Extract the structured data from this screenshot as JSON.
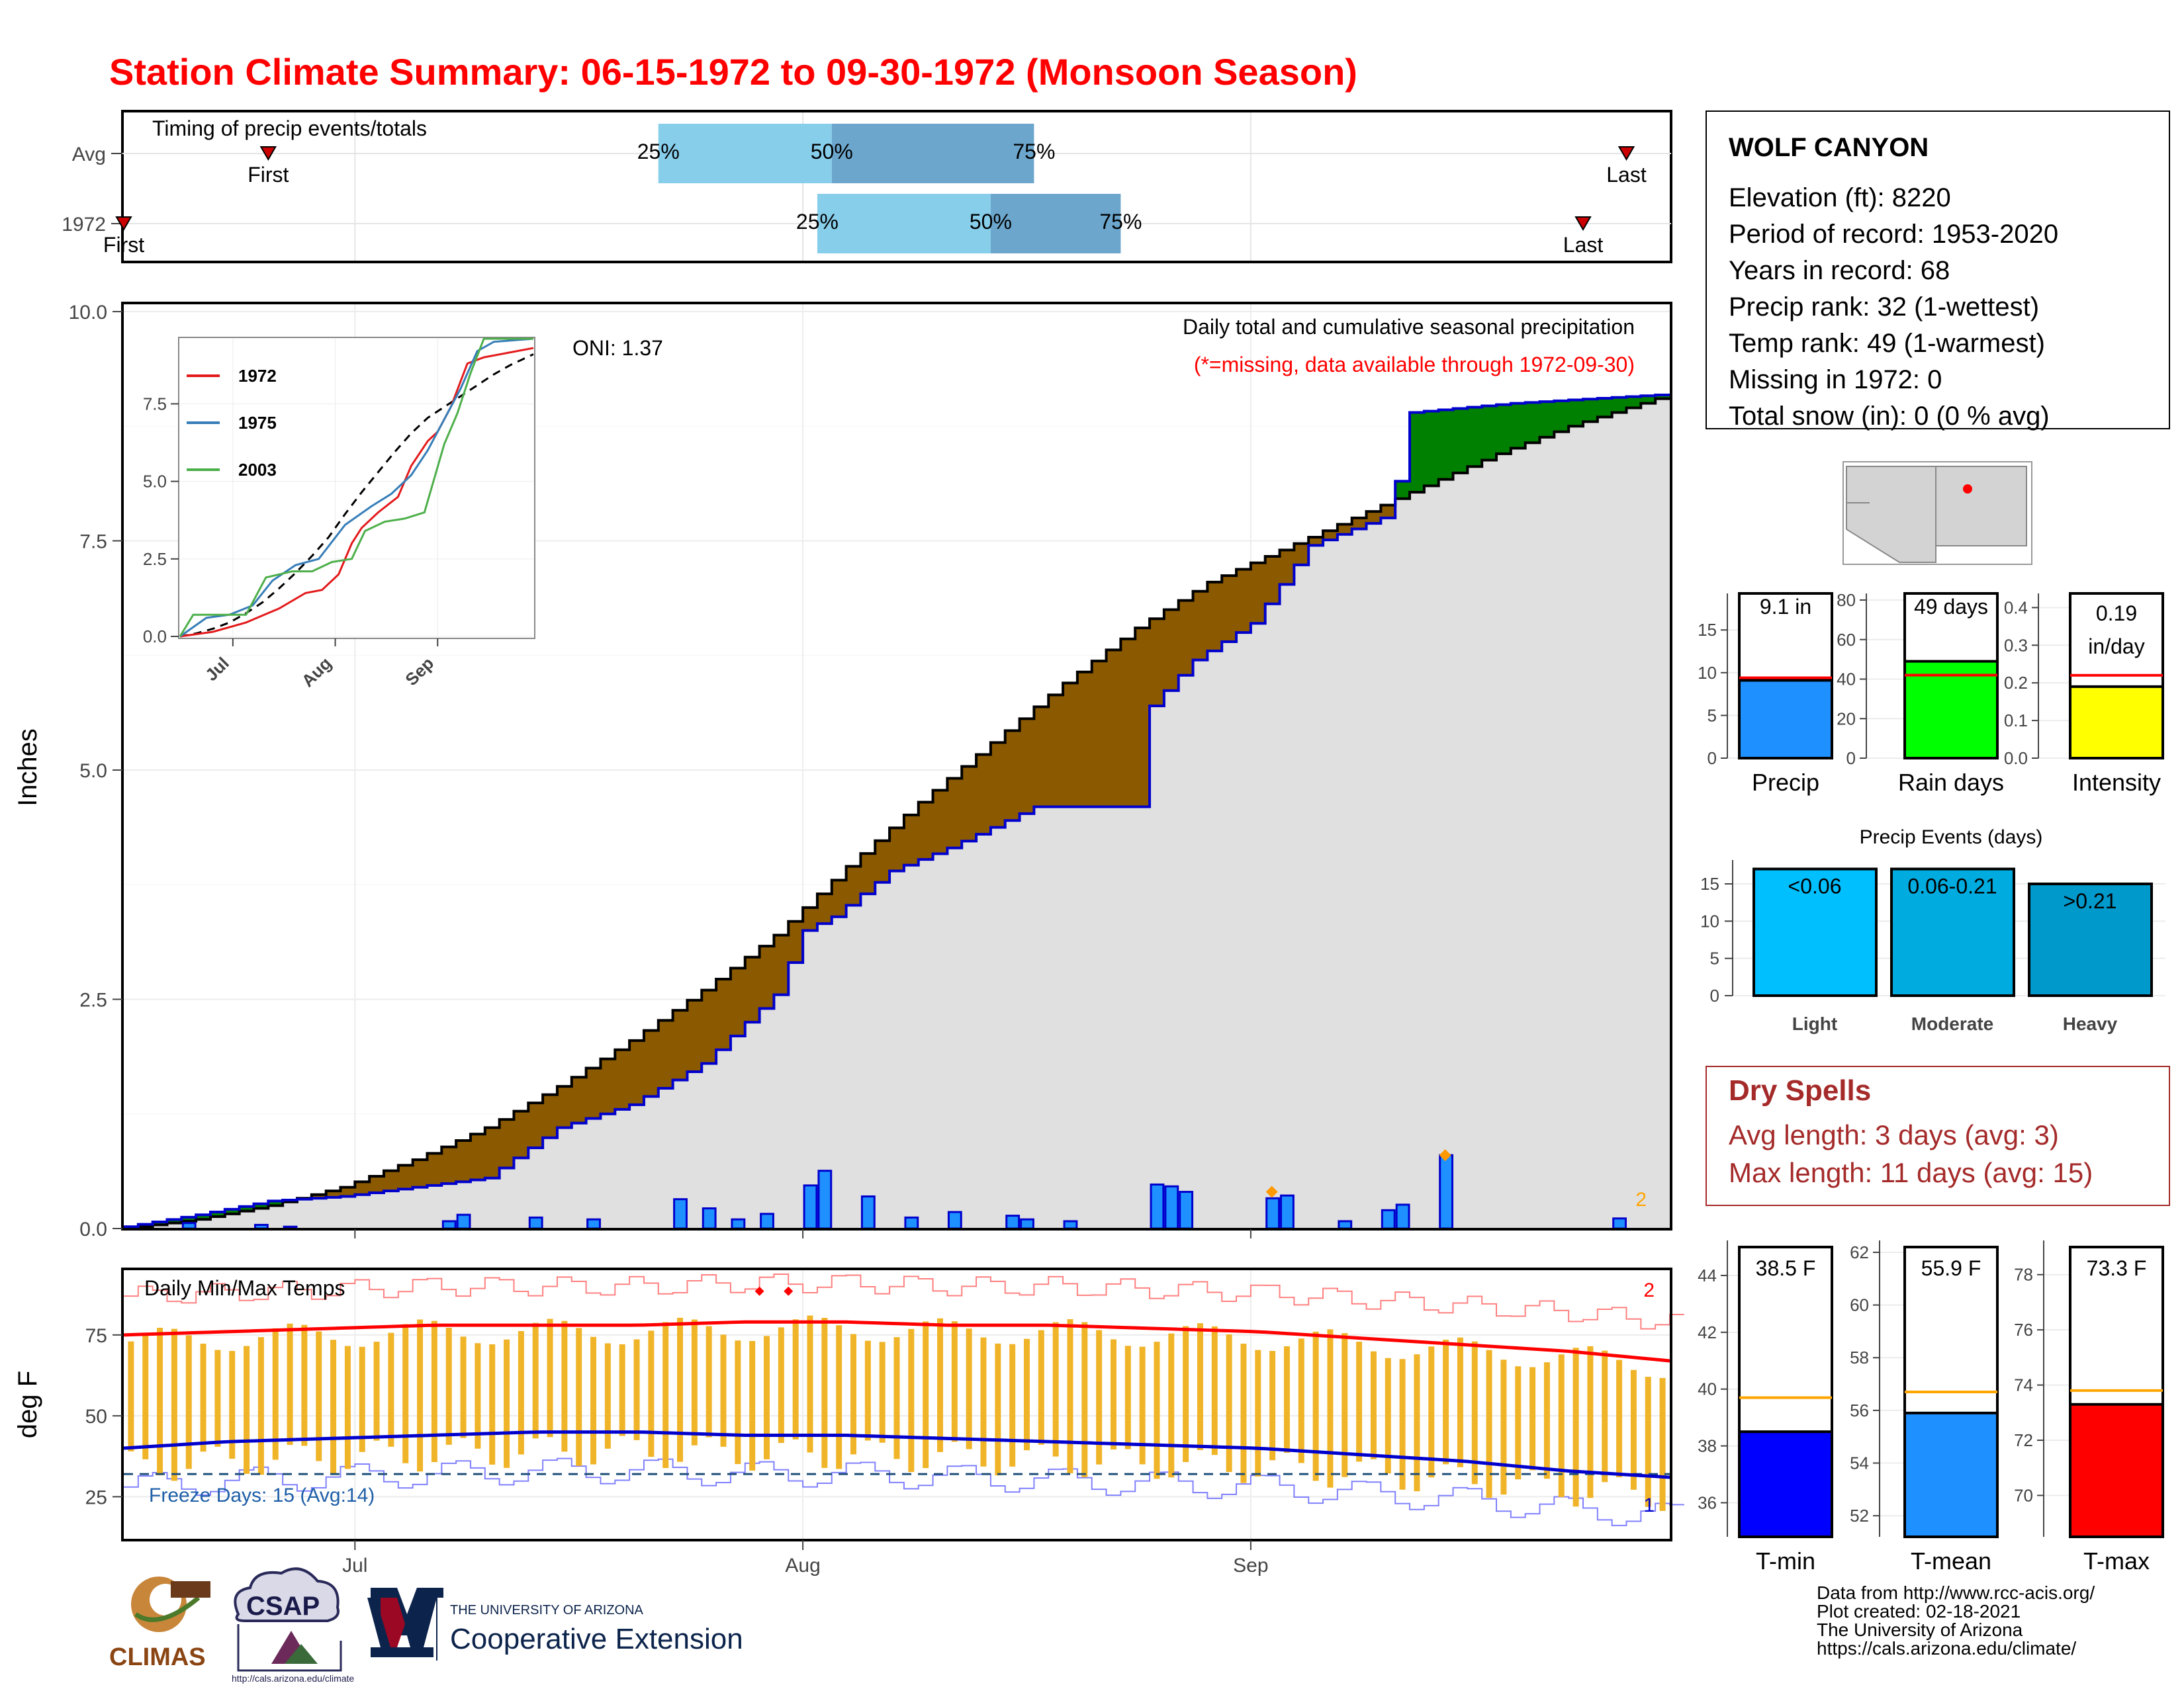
{
  "title": "Station Climate Summary: 06-15-1972 to 09-30-1972 (Monsoon Season)",
  "timing_panel": {
    "label": "Timing of precip events/totals",
    "rows": [
      {
        "label": "Avg",
        "first": "06-25",
        "q25": "07-22",
        "q50": "08-03",
        "q75": "08-17",
        "last": "09-27",
        "first_label": "First",
        "q25_label": "25%",
        "q50_label": "50%",
        "q75_label": "75%",
        "last_label": "Last"
      },
      {
        "label": "1972",
        "first": "06-15",
        "q25": "08-02",
        "q50": "08-14",
        "q75": "08-23",
        "last": "09-24",
        "first_label": "First",
        "q25_label": "25%",
        "q50_label": "50%",
        "q75_label": "75%",
        "last_label": "Last"
      }
    ]
  },
  "station": {
    "name": "WOLF CANYON",
    "lines": [
      "Elevation (ft): 8220",
      "Period of record: 1953-2020",
      "Years in record: 68",
      "Precip rank: 32 (1-wettest)",
      "Temp rank: 49 (1-warmest)",
      "Missing in 1972: 0",
      "Total snow (in): 0 (0 % avg)"
    ]
  },
  "dry_spells": {
    "title": "Dry Spells",
    "avg": "Avg length: 3 days (avg: 3)",
    "max": "Max length: 11 days (avg: 15)"
  },
  "footer": {
    "lines": [
      "Data from http://www.rcc-acis.org/",
      "Plot created: 02-18-2021",
      "The University of Arizona",
      "https://cals.arizona.edu/climate/"
    ],
    "logos": {
      "climas": "CLIMAS",
      "csap": "CSAP",
      "ua_small": "THE UNIVERSITY OF ARIZONA",
      "ua_big": "Cooperative Extension",
      "csap_url": "http://cals.arizona.edu/climate"
    }
  },
  "colors": {
    "title": "#ff0000",
    "brown": "#8b5a00",
    "green": "#008000",
    "precip_bar": "#1e90ff",
    "bar_outline": "#0000cd",
    "tmax": "#ff0000",
    "tmin": "#0000cd",
    "temp_bar": "#f0b429",
    "q_light": "#87ceeb",
    "q_dark": "#6ca6cd",
    "dry": "#a52a2a"
  },
  "chart_data": [
    {
      "id": "precip",
      "type": "area",
      "annotation": "Daily total and cumulative seasonal precipitation",
      "missing_note": "(*=missing, data available through 1972-09-30)",
      "oni": "ONI: 1.37",
      "corner_mark": "2",
      "ylabel": "Inches",
      "ylim": [
        0,
        10
      ],
      "yticks": [
        "0.0",
        "2.5",
        "5.0",
        "7.5",
        "10.0"
      ],
      "xticks": [
        "Jul",
        "Aug",
        "Sep"
      ],
      "avg_cumulative": [
        [
          "06-15",
          0.0
        ],
        [
          "06-20",
          0.1
        ],
        [
          "06-25",
          0.25
        ],
        [
          "06-30",
          0.45
        ],
        [
          "07-05",
          0.75
        ],
        [
          "07-10",
          1.1
        ],
        [
          "07-15",
          1.55
        ],
        [
          "07-20",
          2.05
        ],
        [
          "07-25",
          2.6
        ],
        [
          "07-30",
          3.2
        ],
        [
          "08-04",
          3.95
        ],
        [
          "08-09",
          4.65
        ],
        [
          "08-14",
          5.3
        ],
        [
          "08-19",
          5.95
        ],
        [
          "08-24",
          6.55
        ],
        [
          "08-29",
          7.05
        ],
        [
          "09-03",
          7.4
        ],
        [
          "09-08",
          7.75
        ],
        [
          "09-13",
          8.1
        ],
        [
          "09-18",
          8.45
        ],
        [
          "09-23",
          8.75
        ],
        [
          "09-30",
          9.1
        ]
      ],
      "year_cumulative": [
        [
          "06-15",
          0.02
        ],
        [
          "06-20",
          0.15
        ],
        [
          "06-25",
          0.3
        ],
        [
          "06-30",
          0.35
        ],
        [
          "07-05",
          0.45
        ],
        [
          "07-10",
          0.55
        ],
        [
          "07-15",
          1.1
        ],
        [
          "07-20",
          1.35
        ],
        [
          "07-25",
          1.8
        ],
        [
          "07-30",
          2.55
        ],
        [
          "08-01",
          3.25
        ],
        [
          "08-03",
          3.4
        ],
        [
          "08-07",
          3.9
        ],
        [
          "08-11",
          4.15
        ],
        [
          "08-17",
          4.6
        ],
        [
          "08-24",
          4.6
        ],
        [
          "08-25",
          5.7
        ],
        [
          "08-28",
          6.2
        ],
        [
          "09-01",
          6.6
        ],
        [
          "09-05",
          7.45
        ],
        [
          "09-10",
          7.75
        ],
        [
          "09-11",
          8.15
        ],
        [
          "09-12",
          8.9
        ],
        [
          "09-19",
          9.0
        ],
        [
          "09-30",
          9.1
        ]
      ],
      "daily_precip": [
        [
          "06-19",
          0.06
        ],
        [
          "06-24",
          0.04
        ],
        [
          "06-26",
          0.02
        ],
        [
          "07-07",
          0.08
        ],
        [
          "07-08",
          0.15
        ],
        [
          "07-13",
          0.12
        ],
        [
          "07-17",
          0.1
        ],
        [
          "07-23",
          0.32
        ],
        [
          "07-25",
          0.22
        ],
        [
          "07-27",
          0.1
        ],
        [
          "07-29",
          0.16
        ],
        [
          "08-01",
          0.47
        ],
        [
          "08-02",
          0.63
        ],
        [
          "08-05",
          0.35
        ],
        [
          "08-08",
          0.12
        ],
        [
          "08-11",
          0.18
        ],
        [
          "08-15",
          0.14
        ],
        [
          "08-16",
          0.1
        ],
        [
          "08-19",
          0.08
        ],
        [
          "08-25",
          0.48
        ],
        [
          "08-26",
          0.46
        ],
        [
          "08-27",
          0.4
        ],
        [
          "09-02",
          0.33
        ],
        [
          "09-03",
          0.36
        ],
        [
          "09-07",
          0.08
        ],
        [
          "09-10",
          0.2
        ],
        [
          "09-11",
          0.26
        ],
        [
          "09-14",
          0.8
        ],
        [
          "09-26",
          0.11
        ]
      ],
      "inset": {
        "type": "line",
        "yticks": [
          "0.0",
          "2.5",
          "5.0",
          "7.5"
        ],
        "xticks": [
          "Jul",
          "Aug",
          "Sep"
        ],
        "series": [
          {
            "name": "1972",
            "color": "#e31a1c"
          },
          {
            "name": "1975",
            "color": "#377eb8"
          },
          {
            "name": "2003",
            "color": "#4daf4a"
          }
        ]
      }
    },
    {
      "id": "temps",
      "type": "bar",
      "annotation": "Daily Min/Max Temps",
      "ylabel": "deg F",
      "yticks": [
        "25",
        "50",
        "75"
      ],
      "xticks": [
        "Jul",
        "Aug",
        "Sep"
      ],
      "freeze_note": "Freeze Days: 15 (Avg:14)",
      "corner_top": "2",
      "corner_bottom": "1",
      "freeze_line": 32,
      "avg_tmax": [
        75,
        76,
        77,
        78,
        78,
        78,
        79,
        79,
        78,
        78,
        77,
        76,
        74,
        72,
        70,
        67
      ],
      "avg_tmin": [
        40,
        42,
        43,
        44,
        45,
        45,
        44,
        44,
        43,
        42,
        41,
        40,
        38,
        36,
        33,
        31
      ]
    },
    {
      "id": "season-totals",
      "type": "bar",
      "categories": [
        "Precip",
        "Rain days",
        "Intensity"
      ],
      "values": [
        9.1,
        49,
        0.19
      ],
      "labels": [
        "9.1 in",
        "49 days",
        "0.19"
      ],
      "units": [
        "",
        "",
        "in/day"
      ],
      "averages": [
        9.4,
        42,
        0.22
      ],
      "ticks": [
        [
          "0",
          "5",
          "10",
          "15"
        ],
        [
          "0",
          "20",
          "40",
          "60",
          "80"
        ],
        [
          "0.0",
          "0.1",
          "0.2",
          "0.3",
          "0.4"
        ]
      ]
    },
    {
      "id": "precip-events",
      "type": "bar",
      "title": "Precip Events (days)",
      "categories": [
        "Light",
        "Moderate",
        "Heavy"
      ],
      "values": [
        17,
        17,
        15
      ],
      "labels": [
        "<0.06",
        "0.06-0.21",
        ">0.21"
      ],
      "yticks": [
        "0",
        "5",
        "10",
        "15"
      ]
    },
    {
      "id": "temp-summary",
      "type": "bar",
      "categories": [
        "T-min",
        "T-mean",
        "T-max"
      ],
      "values": [
        38.5,
        55.9,
        73.3
      ],
      "labels": [
        "38.5 F",
        "55.9 F",
        "73.3 F"
      ],
      "averages": [
        39.7,
        56.7,
        73.8
      ],
      "ticks": [
        [
          "36",
          "38",
          "40",
          "42",
          "44"
        ],
        [
          "52",
          "54",
          "56",
          "58",
          "60",
          "62"
        ],
        [
          "70",
          "72",
          "74",
          "76",
          "78"
        ]
      ]
    }
  ]
}
